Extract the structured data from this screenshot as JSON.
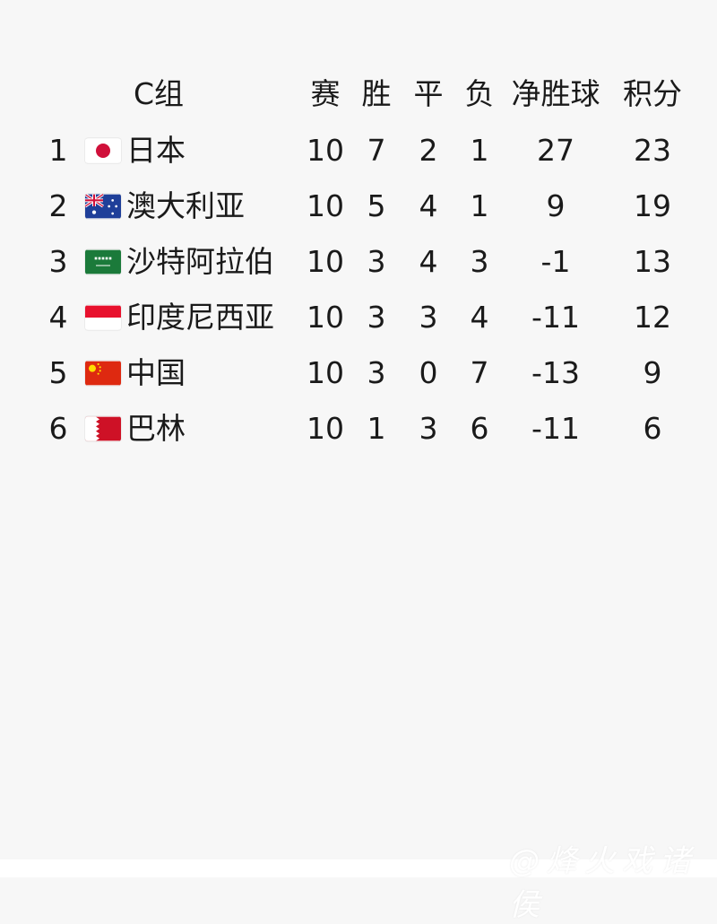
{
  "group_title": "C组",
  "headers": {
    "played": "赛",
    "won": "胜",
    "drawn": "平",
    "lost": "负",
    "goal_diff": "净胜球",
    "points": "积分"
  },
  "rows": [
    {
      "rank": "1",
      "flag": "japan-flag-icon",
      "team": "日本",
      "played": "10",
      "won": "7",
      "drawn": "2",
      "lost": "1",
      "goal_diff": "27",
      "points": "23"
    },
    {
      "rank": "2",
      "flag": "australia-flag-icon",
      "team": "澳大利亚",
      "played": "10",
      "won": "5",
      "drawn": "4",
      "lost": "1",
      "goal_diff": "9",
      "points": "19"
    },
    {
      "rank": "3",
      "flag": "saudi-arabia-flag-icon",
      "team": "沙特阿拉伯",
      "played": "10",
      "won": "3",
      "drawn": "4",
      "lost": "3",
      "goal_diff": "-1",
      "points": "13"
    },
    {
      "rank": "4",
      "flag": "indonesia-flag-icon",
      "team": "印度尼西亚",
      "played": "10",
      "won": "3",
      "drawn": "3",
      "lost": "4",
      "goal_diff": "-11",
      "points": "12"
    },
    {
      "rank": "5",
      "flag": "china-flag-icon",
      "team": "中国",
      "played": "10",
      "won": "3",
      "drawn": "0",
      "lost": "7",
      "goal_diff": "-13",
      "points": "9"
    },
    {
      "rank": "6",
      "flag": "bahrain-flag-icon",
      "team": "巴林",
      "played": "10",
      "won": "1",
      "drawn": "3",
      "lost": "6",
      "goal_diff": "-11",
      "points": "6"
    }
  ],
  "watermark": "@烽火戏诸侯"
}
